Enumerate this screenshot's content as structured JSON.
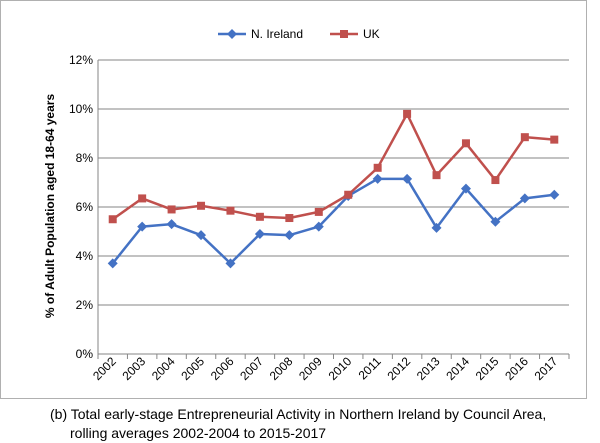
{
  "chart_data": {
    "type": "line",
    "categories": [
      "2002",
      "2003",
      "2004",
      "2005",
      "2006",
      "2007",
      "2008",
      "2009",
      "2010",
      "2011",
      "2012",
      "2013",
      "2014",
      "2015",
      "2016",
      "2017"
    ],
    "series": [
      {
        "name": "N. Ireland",
        "color": "#4472C4",
        "marker": "diamond",
        "values": [
          3.7,
          5.2,
          5.3,
          4.85,
          3.7,
          4.9,
          4.85,
          5.2,
          6.45,
          7.15,
          7.15,
          5.15,
          6.75,
          5.4,
          6.35,
          6.5
        ]
      },
      {
        "name": "UK",
        "color": "#C0504D",
        "marker": "square",
        "values": [
          5.5,
          6.35,
          5.9,
          6.05,
          5.85,
          5.6,
          5.55,
          5.8,
          6.5,
          7.6,
          9.8,
          7.3,
          8.6,
          7.1,
          8.85,
          8.75
        ]
      }
    ],
    "title": "",
    "xlabel": "",
    "ylabel": "% of Adult Population aged 18-64 years",
    "ylim": [
      0,
      12
    ],
    "yticks": [
      "0%",
      "2%",
      "4%",
      "6%",
      "8%",
      "10%",
      "12%"
    ],
    "grid": true,
    "legend": "top-center"
  },
  "caption": {
    "line1": "(b)  Total early-stage Entrepreneurial Activity in Northern Ireland by Council Area,",
    "line2": "rolling averages 2002-2004 to 2015-2017"
  }
}
